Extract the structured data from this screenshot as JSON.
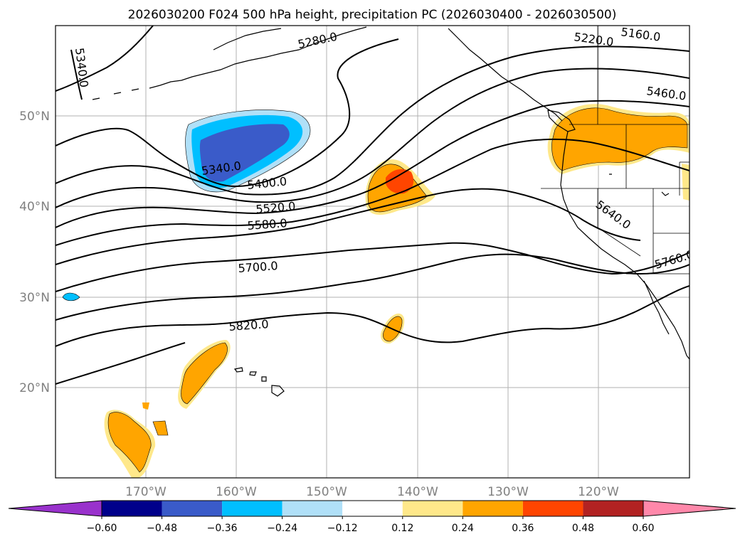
{
  "title": "2026030200 F024 500 hPa height, precipitation PC (2026030400 - 2026030500)",
  "map": {
    "lat_labels": [
      "50°N",
      "40°N",
      "30°N",
      "20°N"
    ],
    "lon_labels": [
      "170°W",
      "160°W",
      "150°W",
      "140°W",
      "130°W",
      "120°W"
    ],
    "contour_labels": [
      "5340.0",
      "5280.0",
      "5220.0",
      "5160.0",
      "5460.0",
      "5340.0",
      "5400.0",
      "5520.0",
      "5580.0",
      "5640.0",
      "5700.0",
      "5760.0",
      "5820.0"
    ]
  },
  "colorbar": {
    "ticks": [
      "−0.60",
      "−0.48",
      "−0.36",
      "−0.24",
      "−0.12",
      "0.12",
      "0.24",
      "0.36",
      "0.48",
      "0.60"
    ],
    "colors": [
      "#9932cc",
      "#00008b",
      "#3a5bc9",
      "#00bfff",
      "#b0e0f8",
      "#ffffff",
      "#ffe88a",
      "#ffa500",
      "#ff4500",
      "#b22222",
      "#ff88aa"
    ]
  }
}
